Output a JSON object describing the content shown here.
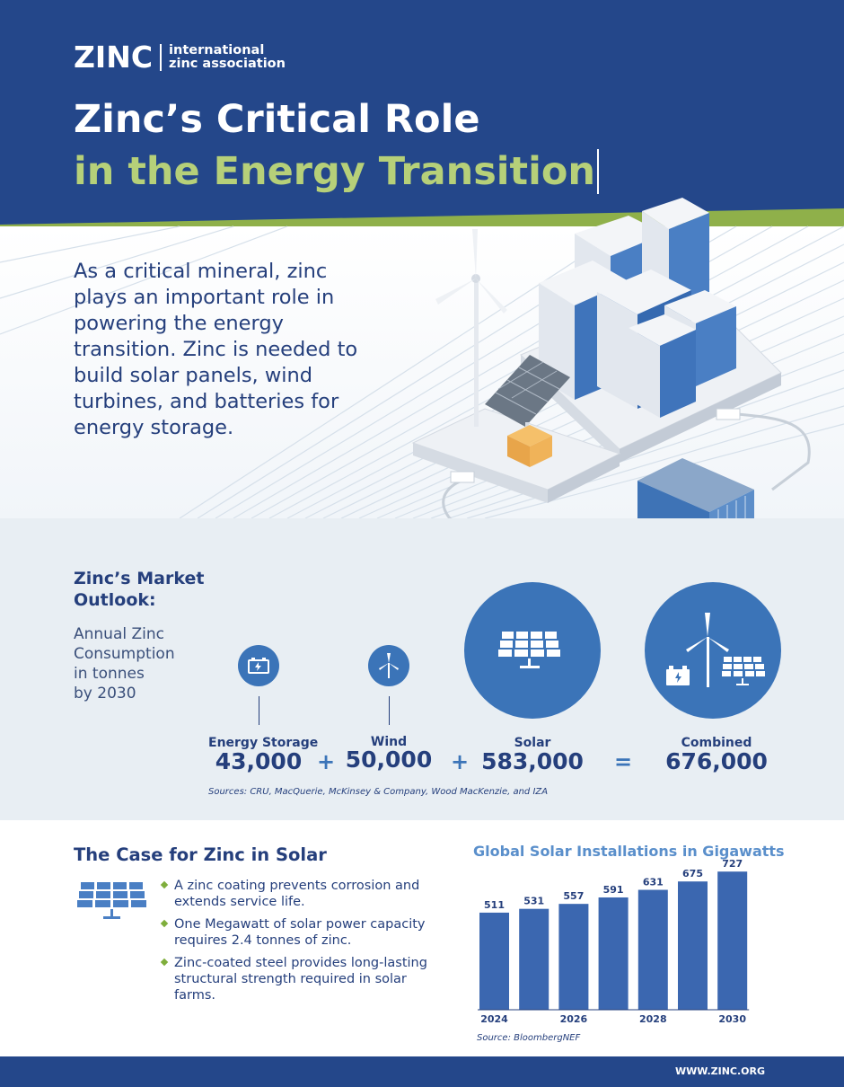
{
  "logo": {
    "word": "ZINC",
    "sub_line1": "international",
    "sub_line2": "zinc association"
  },
  "title": {
    "line1": "Zinc’s Critical Role",
    "line2": "in the Energy Transition"
  },
  "intro": "As a critical mineral, zinc plays an important role in powering the energy transition. Zinc is needed to build solar panels, wind turbines, and batteries for energy storage.",
  "outlook": {
    "title_line1": "Zinc’s Market",
    "title_line2": "Outlook:",
    "subtitle_line1": "Annual Zinc",
    "subtitle_line2": "Consumption",
    "subtitle_line3": "in tonnes",
    "subtitle_line4": "by 2030",
    "items": [
      {
        "label": "Energy Storage",
        "value": "43,000",
        "icon": "battery-icon"
      },
      {
        "label": "Wind",
        "value": "50,000",
        "icon": "wind-turbine-icon"
      },
      {
        "label": "Solar",
        "value": "583,000",
        "icon": "solar-panel-icon"
      },
      {
        "label": "Combined",
        "value": "676,000",
        "icon": "combined-energy-icon"
      }
    ],
    "plus": "+",
    "equals": "=",
    "sources": "Sources: CRU, MacQuerie, McKinsey & Company, Wood MacKenzie, and IZA"
  },
  "case": {
    "title": "The Case for Zinc in Solar",
    "bullets": [
      "A zinc coating prevents corrosion and extends service life.",
      "One Megawatt of solar power capacity requires 2.4 tonnes of zinc.",
      "Zinc-coated steel provides long-lasting structural strength required in solar farms."
    ]
  },
  "chart_data": {
    "type": "bar",
    "title": "Global Solar Installations in Gigawatts",
    "categories": [
      "2024",
      "2025",
      "2026",
      "2027",
      "2028",
      "2029",
      "2030"
    ],
    "tick_labels": [
      "2024",
      "",
      "2026",
      "",
      "2028",
      "",
      "2030"
    ],
    "values": [
      511,
      531,
      557,
      591,
      631,
      675,
      727
    ],
    "value_labels": [
      "511",
      "531",
      "557",
      "591",
      "631",
      "675",
      "727"
    ],
    "ylim": [
      0,
      780
    ],
    "grid": false,
    "color": "#3b67b0",
    "source": "Source: BloombergNEF"
  },
  "colors": {
    "navy": "#24478a",
    "green": "#b6d079",
    "accent_blue": "#3b74b8",
    "light_bg": "#e8eef3"
  },
  "footer": {
    "url": "WWW.ZINC.ORG"
  }
}
